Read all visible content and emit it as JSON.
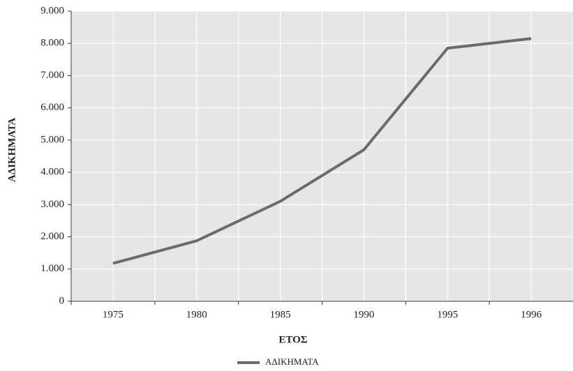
{
  "chart_data": {
    "type": "line",
    "x_label": "ΕΤΟΣ",
    "y_label": "ΑΔΙΚΗΜΑΤΑ",
    "categories": [
      "1975",
      "1980",
      "1985",
      "1990",
      "1995",
      "1996"
    ],
    "series": [
      {
        "name": "ΑΔΙΚΗΜΑΤΑ",
        "color": "#6b6b6b",
        "values": [
          1175,
          1875,
          3100,
          4700,
          7850,
          8150
        ]
      }
    ],
    "ylim": [
      0,
      9000
    ],
    "yticks": [
      0,
      {
        "value": 1000,
        "label": "1.000"
      },
      {
        "value": 2000,
        "label": "2.000"
      },
      {
        "value": 3000,
        "label": "3.000"
      },
      {
        "value": 4000,
        "label": "4.000"
      },
      {
        "value": 5000,
        "label": "5.000"
      },
      {
        "value": 6000,
        "label": "6.000"
      },
      {
        "value": 7000,
        "label": "7.000"
      },
      {
        "value": 8000,
        "label": "8.000"
      },
      {
        "value": 9000,
        "label": "9.000"
      }
    ],
    "grid": true,
    "legend": "bottom"
  }
}
